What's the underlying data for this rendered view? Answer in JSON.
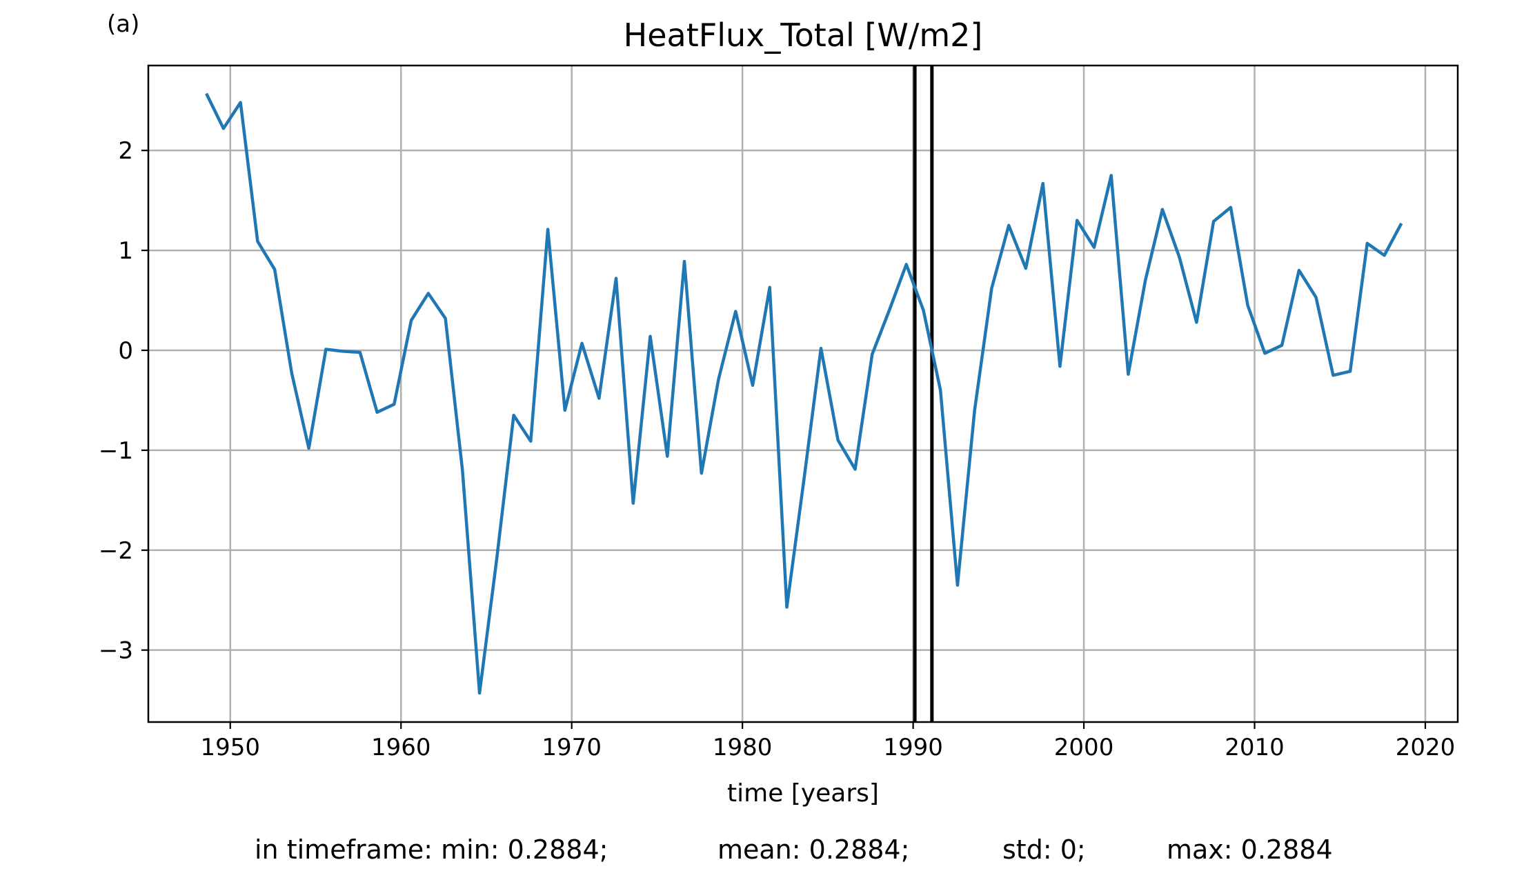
{
  "panel_label": "(a)",
  "stats": {
    "min": "in timeframe: min: 0.2884;",
    "mean": "mean: 0.2884;",
    "std": "std: 0;",
    "max": "max: 0.2884"
  },
  "colors": {
    "series": "#1f77b4",
    "grid": "#b0b0b0",
    "vlines": "#000000"
  },
  "chart_data": {
    "type": "line",
    "title": "HeatFlux_Total [W/m2]",
    "xlabel": "time [years]",
    "ylabel": "",
    "xlim": [
      1945.2,
      2021.9
    ],
    "ylim": [
      -3.72,
      2.85
    ],
    "grid": true,
    "xticks": [
      1950,
      1960,
      1970,
      1980,
      1990,
      2000,
      2010,
      2020
    ],
    "xtick_labels": [
      "1950",
      "1960",
      "1970",
      "1980",
      "1990",
      "2000",
      "2010",
      "2020"
    ],
    "yticks": [
      2,
      1,
      0,
      -1,
      -2,
      -3
    ],
    "ytick_labels": [
      "2",
      "1",
      "0",
      "−1",
      "−2",
      "−3"
    ],
    "vertical_lines": [
      1990.1,
      1991.1
    ],
    "series": [
      {
        "x": [
          1948.6,
          1949.6,
          1950.6,
          1951.6,
          1952.6,
          1953.6,
          1954.6,
          1955.6,
          1956.6,
          1957.6,
          1958.6,
          1959.6,
          1960.6,
          1961.6,
          1962.6,
          1963.6,
          1964.6,
          1965.6,
          1966.6,
          1967.6,
          1968.6,
          1969.6,
          1970.6,
          1971.6,
          1972.6,
          1973.6,
          1974.6,
          1975.6,
          1976.6,
          1977.6,
          1978.6,
          1979.6,
          1980.6,
          1981.6,
          1982.6,
          1983.6,
          1984.6,
          1985.6,
          1986.6,
          1987.6,
          1988.6,
          1989.6,
          1990.6,
          1991.6,
          1992.6,
          1993.6,
          1994.6,
          1995.6,
          1996.6,
          1997.6,
          1998.6,
          1999.6,
          2000.6,
          2001.6,
          2002.6,
          2003.6,
          2004.6,
          2005.6,
          2006.6,
          2007.6,
          2008.6,
          2009.6,
          2010.6,
          2011.6,
          2012.6,
          2013.6,
          2014.6,
          2015.6,
          2016.6,
          2017.6,
          2018.6
        ],
        "y": [
          2.57,
          2.22,
          2.48,
          1.09,
          0.81,
          -0.23,
          -0.98,
          0.01,
          -0.01,
          -0.02,
          -0.62,
          -0.54,
          0.3,
          0.57,
          0.32,
          -1.2,
          -3.43,
          -2.1,
          -0.65,
          -0.91,
          1.21,
          -0.6,
          0.07,
          -0.48,
          0.72,
          -1.53,
          0.14,
          -1.06,
          0.89,
          -1.23,
          -0.29,
          0.39,
          -0.35,
          0.63,
          -2.57,
          -1.3,
          0.02,
          -0.9,
          -1.19,
          -0.04,
          0.4,
          0.86,
          0.4,
          -0.4,
          -2.35,
          -0.6,
          0.62,
          1.25,
          0.82,
          1.67,
          -0.16,
          1.3,
          1.03,
          1.75,
          -0.24,
          0.7,
          1.41,
          0.93,
          0.28,
          1.29,
          1.43,
          0.45,
          -0.03,
          0.05,
          0.8,
          0.53,
          -0.25,
          -0.21,
          1.07,
          0.95,
          1.27
        ]
      }
    ]
  }
}
